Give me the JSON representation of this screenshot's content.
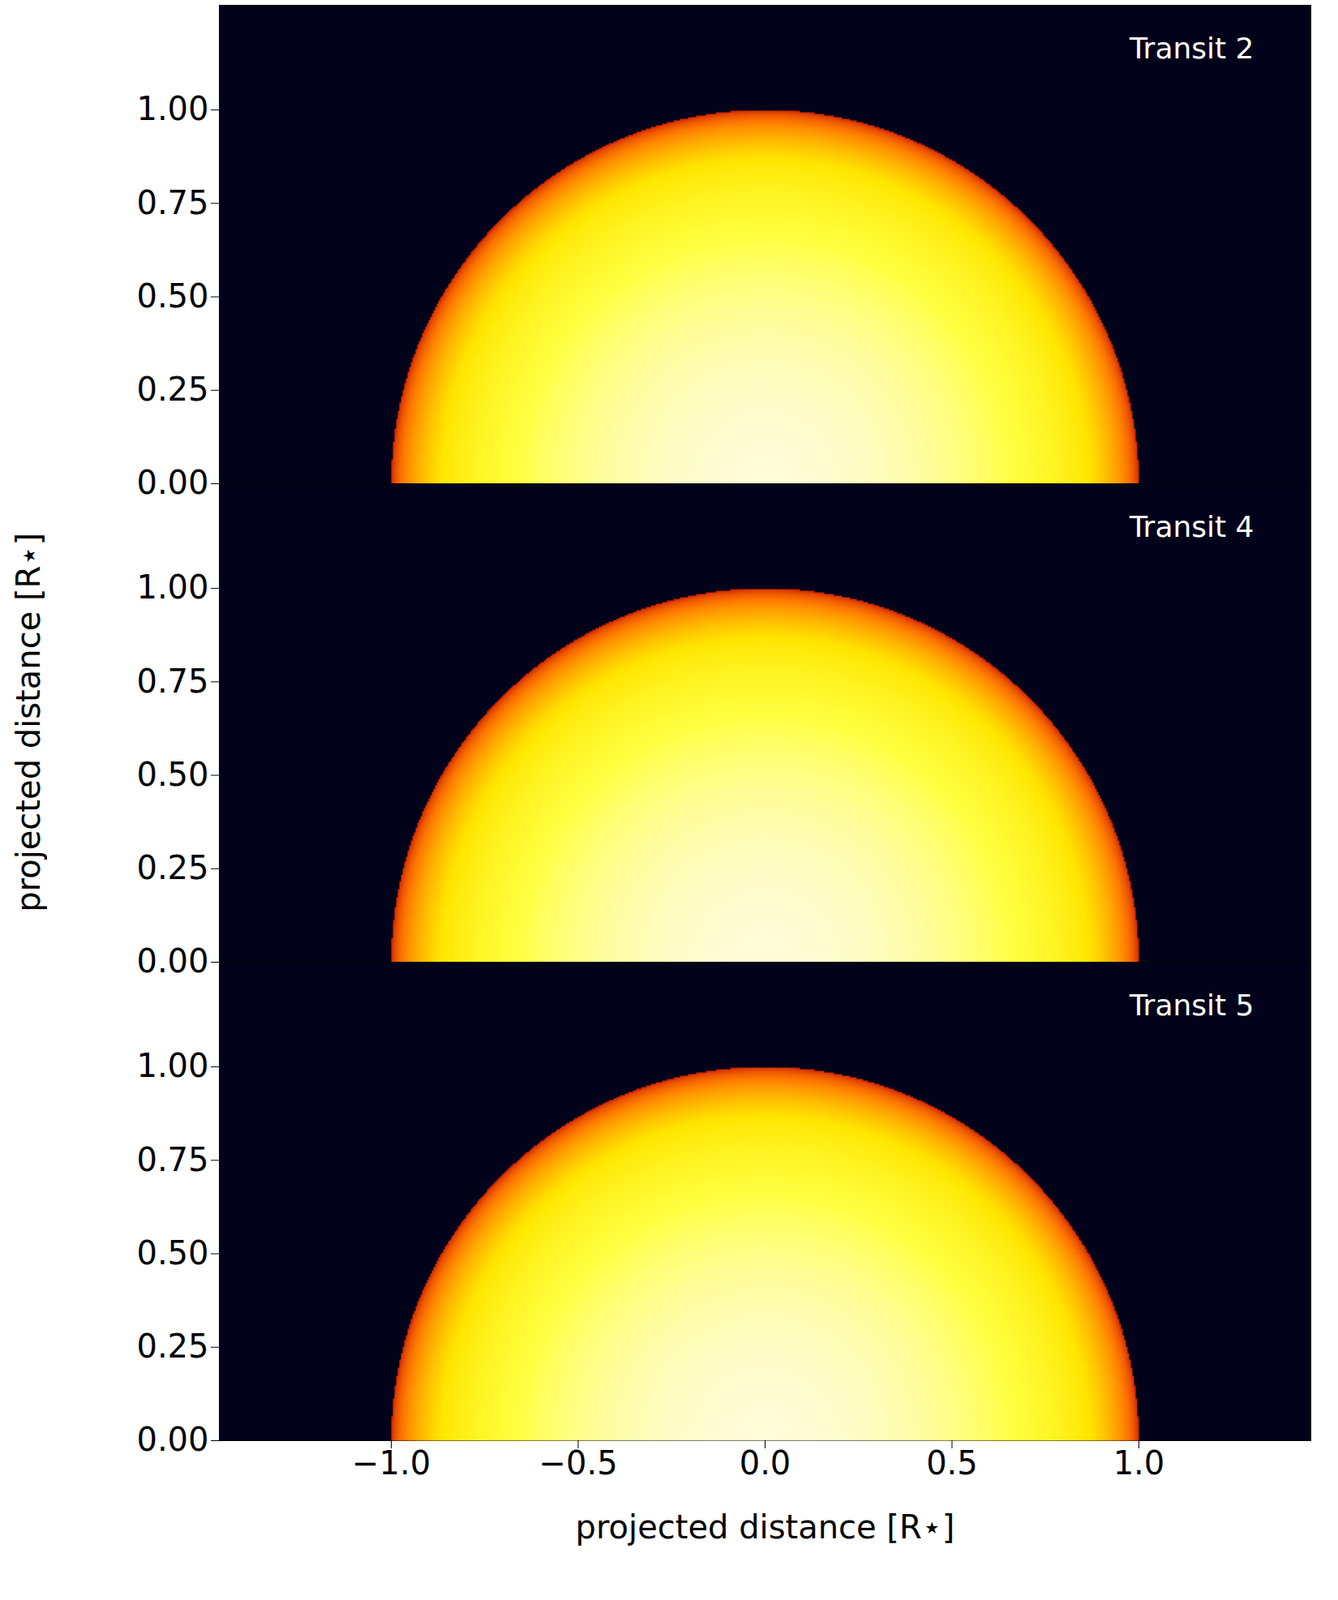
{
  "chart_data": {
    "type": "image",
    "xlabel": "projected distance [R⋆]",
    "ylabel": "projected distance [R⋆]",
    "xlim": [
      -1.46,
      1.46
    ],
    "ylim": [
      0,
      1.28
    ],
    "xticks": [
      {
        "value": -1,
        "label": "−1.0"
      },
      {
        "value": -0.5,
        "label": "−0.5"
      },
      {
        "value": 0,
        "label": "0.0"
      },
      {
        "value": 0.5,
        "label": "0.5"
      },
      {
        "value": 1,
        "label": "1.0"
      }
    ],
    "yticks": [
      {
        "value": 0,
        "label": "0.00"
      },
      {
        "value": 0.25,
        "label": "0.25"
      },
      {
        "value": 0.5,
        "label": "0.50"
      },
      {
        "value": 0.75,
        "label": "0.75"
      },
      {
        "value": 1,
        "label": "1.00"
      }
    ],
    "stellar_radius": 1,
    "colors": [
      "#c81400",
      "#ff7a00",
      "#ffe600",
      "#ffff40",
      "#fffcd8"
    ],
    "panels": [
      {
        "title": "Transit 2"
      },
      {
        "title": "Transit 4"
      },
      {
        "title": "Transit 5"
      }
    ]
  }
}
